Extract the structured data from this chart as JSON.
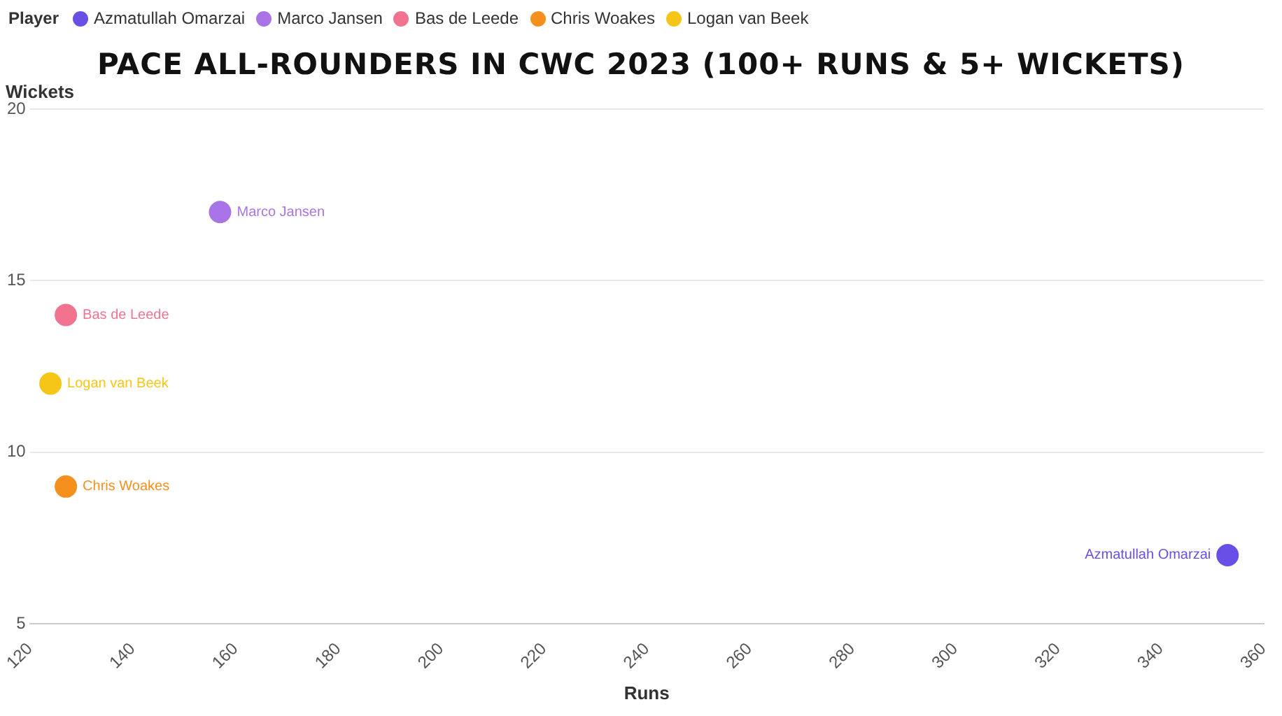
{
  "chart_data": {
    "type": "scatter",
    "title": "PACE ALL-ROUNDERS IN CWC 2023 (100+ RUNS & 5+ WICKETS)",
    "xlabel": "Runs",
    "ylabel": "Wickets",
    "legend_title": "Player",
    "legend": "top left",
    "grid": "y",
    "marker": "circle",
    "xlim": [
      120,
      360
    ],
    "xticks": [
      120,
      140,
      160,
      180,
      200,
      220,
      240,
      260,
      280,
      300,
      320,
      340,
      360
    ],
    "ylim": [
      5,
      20
    ],
    "yticks": [
      5,
      10,
      15,
      20
    ],
    "series": [
      {
        "name": "Azmatullah Omarzai",
        "color": "#6a4fe6",
        "x": [
          353
        ],
        "values": [
          7
        ]
      },
      {
        "name": "Marco Jansen",
        "color": "#a874e8",
        "x": [
          157
        ],
        "values": [
          17
        ]
      },
      {
        "name": "Bas de Leede",
        "color": "#f2738f",
        "x": [
          127
        ],
        "values": [
          14
        ]
      },
      {
        "name": "Chris Woakes",
        "color": "#f5901e",
        "x": [
          127
        ],
        "values": [
          9
        ]
      },
      {
        "name": "Logan van Beek",
        "color": "#f5c518",
        "x": [
          124
        ],
        "values": [
          12
        ]
      }
    ]
  }
}
